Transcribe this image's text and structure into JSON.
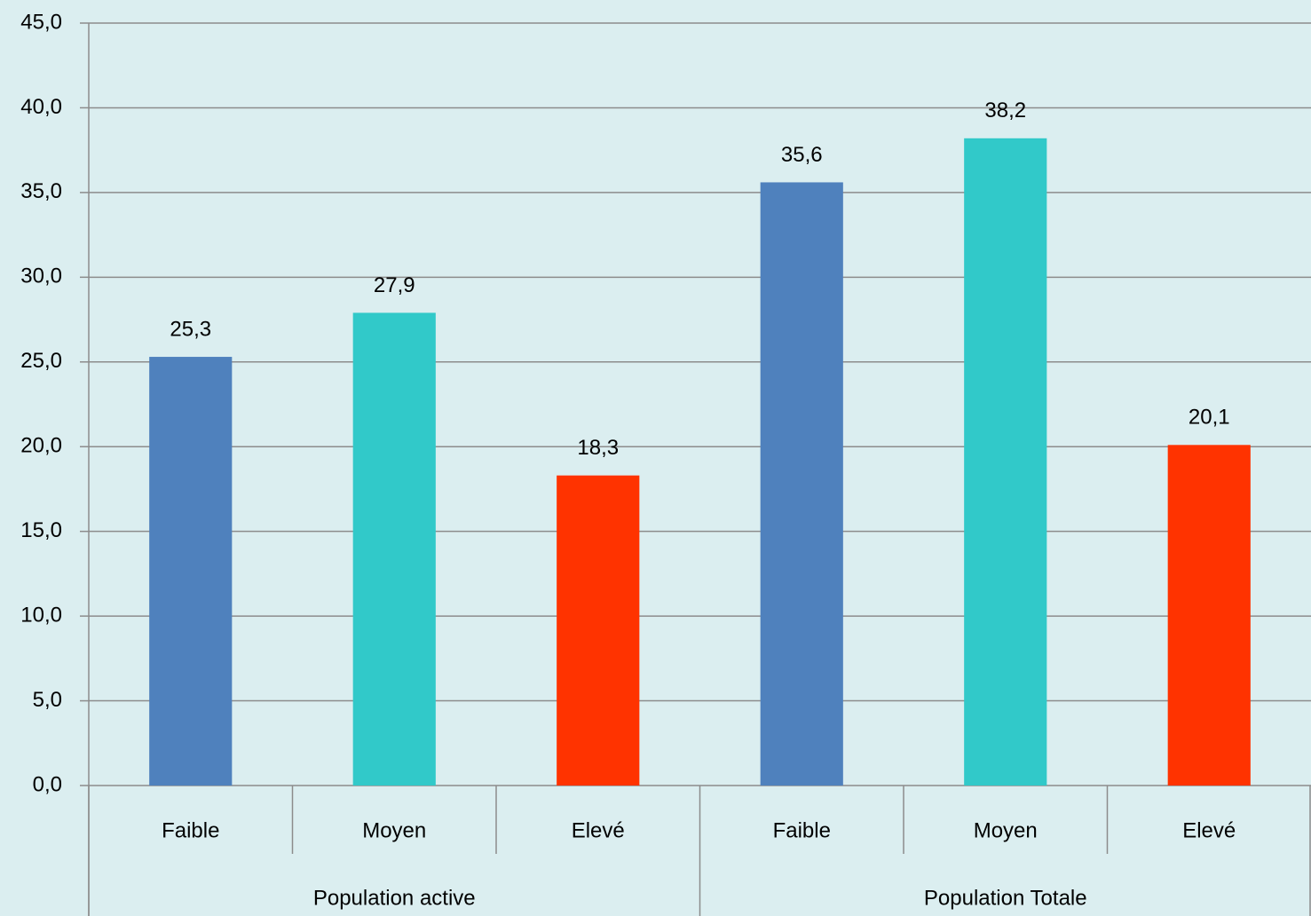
{
  "chart_data": {
    "type": "bar",
    "groups": [
      {
        "name": "Population active",
        "categories": [
          "Faible",
          "Moyen",
          "Elevé"
        ],
        "values": [
          25.3,
          27.9,
          18.3
        ],
        "value_labels": [
          "25,3",
          "27,9",
          "18,3"
        ]
      },
      {
        "name": "Population Totale",
        "categories": [
          "Faible",
          "Moyen",
          "Elevé"
        ],
        "values": [
          35.6,
          38.2,
          20.1
        ],
        "value_labels": [
          "35,6",
          "38,2",
          "20,1"
        ]
      }
    ],
    "colors": [
      "#4f81bd",
      "#31c9c9",
      "#ff3300"
    ],
    "ylim": [
      0,
      45
    ],
    "yticks": [
      {
        "value": 0,
        "label": "0,0"
      },
      {
        "value": 5,
        "label": "5,0"
      },
      {
        "value": 10,
        "label": "10,0"
      },
      {
        "value": 15,
        "label": "15,0"
      },
      {
        "value": 20,
        "label": "20,0"
      },
      {
        "value": 25,
        "label": "25,0"
      },
      {
        "value": 30,
        "label": "30,0"
      },
      {
        "value": 35,
        "label": "35,0"
      },
      {
        "value": 40,
        "label": "40,0"
      },
      {
        "value": 45,
        "label": "45,0"
      }
    ],
    "grid": true
  }
}
